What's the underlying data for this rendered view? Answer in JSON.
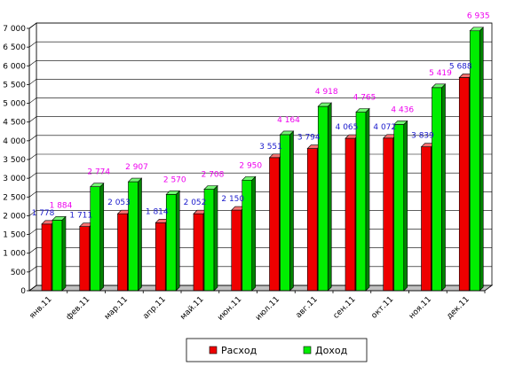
{
  "chart_data": {
    "type": "bar",
    "categories": [
      "янв.11",
      "фев.11",
      "мар.11",
      "апр.11",
      "май.11",
      "июн.11",
      "июл.11",
      "авг.11",
      "сен.11",
      "окт.11",
      "ноя.11",
      "дек.11"
    ],
    "series": [
      {
        "name": "Расход",
        "color": "#ee0000",
        "label_color": "#1a1acc",
        "values": [
          1778,
          1711,
          2053,
          1814,
          2052,
          2150,
          3551,
          3794,
          4065,
          4072,
          3839,
          5688
        ],
        "labels": [
          "1 778",
          "1 711",
          "2 053",
          "1 814",
          "2 052",
          "2 150",
          "3 551",
          "3 794",
          "4 065",
          "4 072",
          "3 839",
          "5 688"
        ]
      },
      {
        "name": "Доход",
        "color": "#00ee00",
        "label_color": "#ee00ee",
        "values": [
          1884,
          2774,
          2907,
          2570,
          2708,
          2950,
          4164,
          4918,
          4765,
          4436,
          5419,
          6935
        ],
        "labels": [
          "1 884",
          "2 774",
          "2 907",
          "2 570",
          "2 708",
          "2 950",
          "4 164",
          "4 918",
          "4 765",
          "4 436",
          "5 419",
          "6 935"
        ]
      }
    ],
    "ylim": [
      0,
      7000
    ],
    "yticks": [
      0,
      500,
      1000,
      1500,
      2000,
      2500,
      3000,
      3500,
      4000,
      4500,
      5000,
      5500,
      6000,
      6500,
      7000
    ],
    "ytick_labels": [
      "0",
      "500",
      "1 000",
      "1 500",
      "2 000",
      "2 500",
      "3 000",
      "3 500",
      "4 000",
      "4 500",
      "5 000",
      "5 500",
      "6 000",
      "6 500",
      "7 000"
    ],
    "grid": true,
    "legend": "bottom",
    "style": "3d-bar",
    "xlabel": "",
    "ylabel": "",
    "title": ""
  }
}
